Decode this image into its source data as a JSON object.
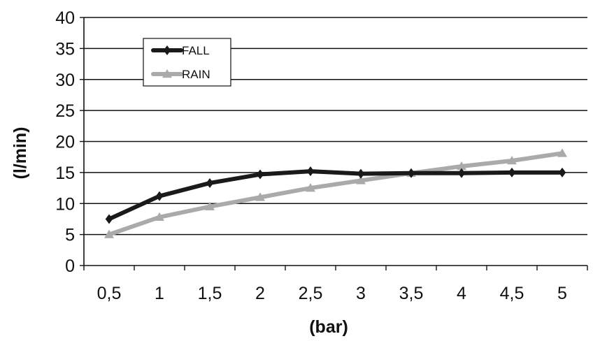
{
  "chart_data": {
    "type": "line",
    "title": "",
    "xlabel": "(bar)",
    "ylabel": "(l/min)",
    "categories": [
      "0,5",
      "1",
      "1,5",
      "2",
      "2,5",
      "3",
      "3,5",
      "4",
      "4,5",
      "5"
    ],
    "y_ticks": [
      "0",
      "5",
      "10",
      "15",
      "20",
      "25",
      "30",
      "35",
      "40"
    ],
    "ylim": [
      0,
      40
    ],
    "grid": "horizontal",
    "legend_position": "top-left",
    "series": [
      {
        "name": "FALL",
        "color": "#1a1a1a",
        "marker": "diamond",
        "values": [
          7.5,
          11.2,
          13.3,
          14.7,
          15.2,
          14.8,
          14.9,
          14.9,
          15.0,
          15.0
        ]
      },
      {
        "name": "RAIN",
        "color": "#aaaaaa",
        "marker": "triangle",
        "values": [
          5.0,
          7.8,
          9.5,
          11.0,
          12.5,
          13.7,
          14.9,
          16.0,
          16.9,
          18.1
        ]
      }
    ]
  }
}
